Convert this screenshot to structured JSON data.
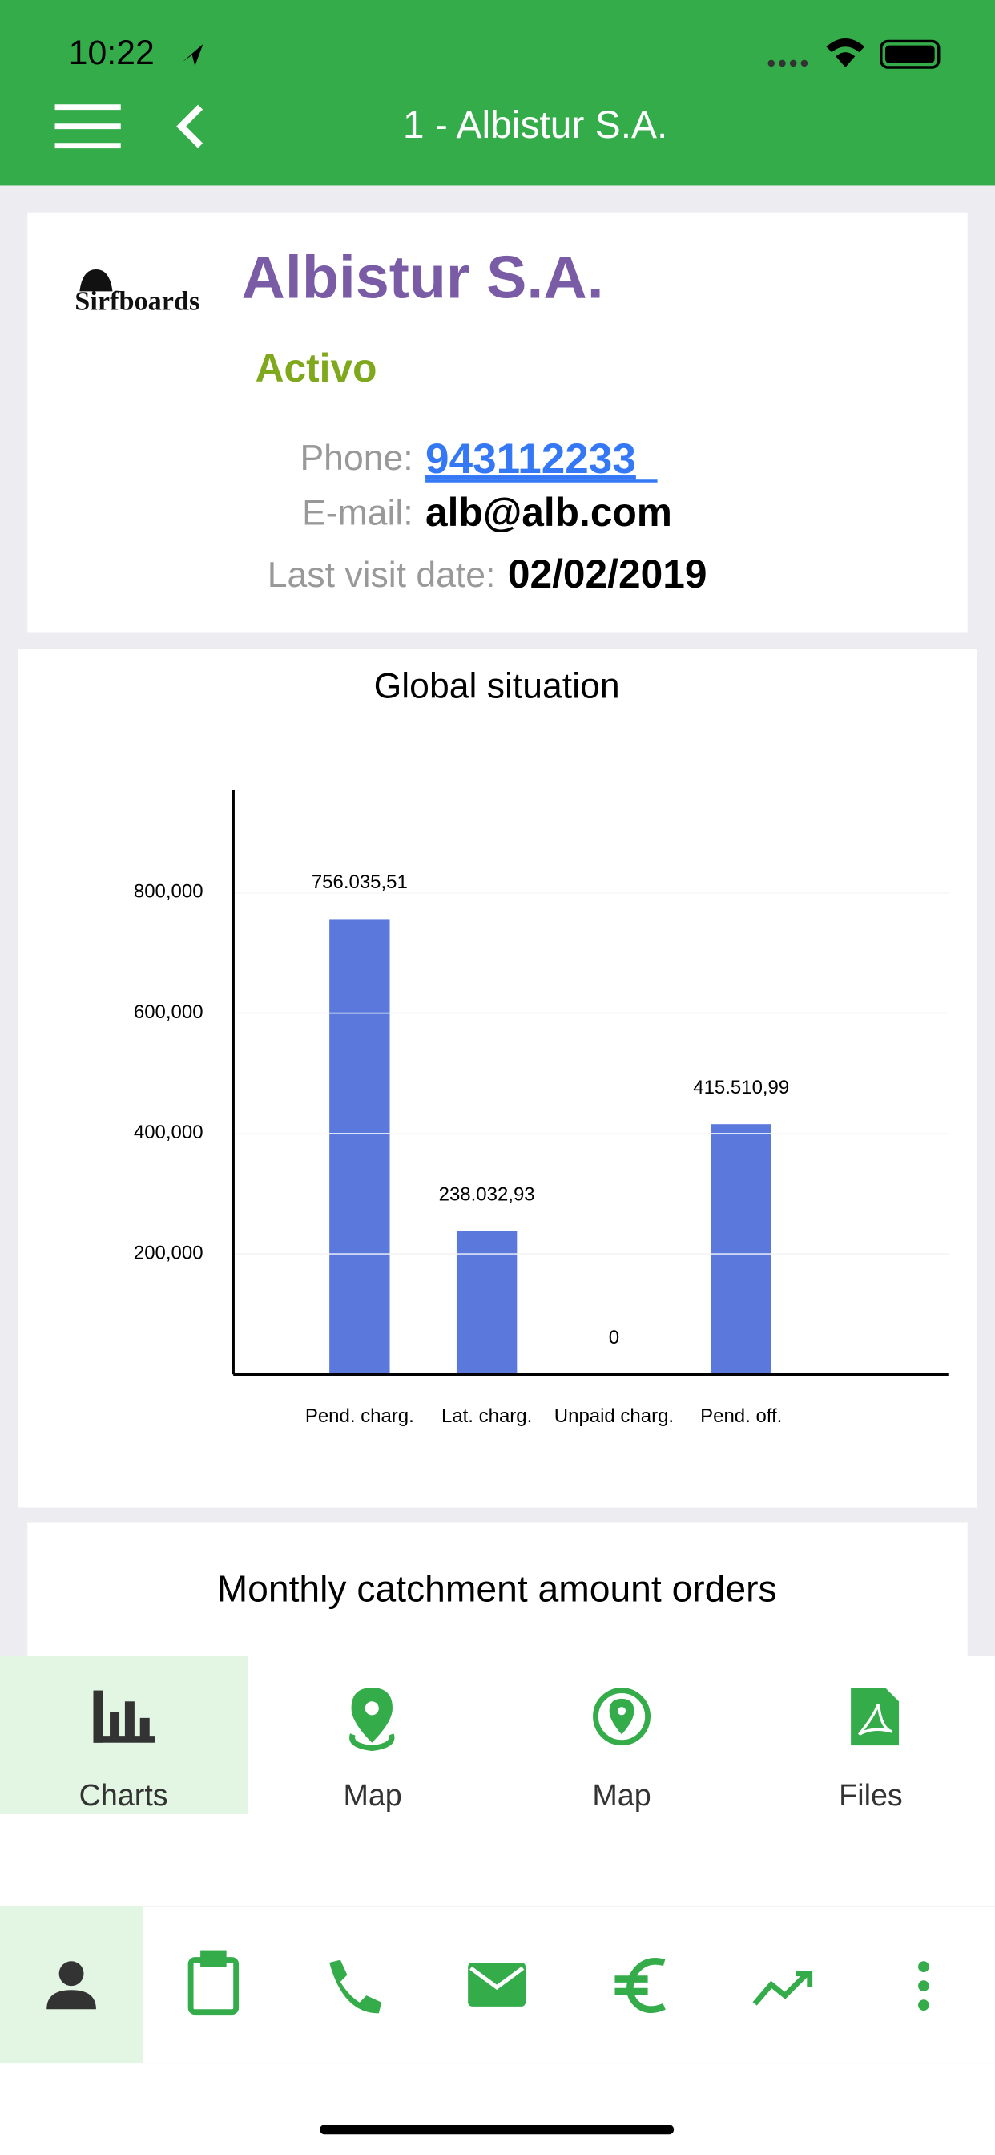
{
  "status_bar": {
    "time": "10:22"
  },
  "header": {
    "title": "1 - Albistur S.A."
  },
  "customer": {
    "logo": "Sirfboards",
    "name": "Albistur S.A.",
    "status": "Activo",
    "phone_label": "Phone:",
    "phone": "943112233",
    "email_label": "E-mail:",
    "email": "alb@alb.com",
    "visit_label": "Last visit date:",
    "visit_date": "02/02/2019"
  },
  "chart_data": {
    "type": "bar",
    "title": "Global situation",
    "categories": [
      "Pend. charg.",
      "Lat. charg.",
      "Unpaid charg.",
      "Pend. off."
    ],
    "values": [
      756035.51,
      238032.93,
      0,
      415510.99
    ],
    "value_labels": [
      "756.035,51",
      "238.032,93",
      "0",
      "415.510,99"
    ],
    "color": "#5b78dd",
    "ylim": [
      0,
      970000
    ],
    "yticks": [
      {
        "value": 200000,
        "label": "200,000"
      },
      {
        "value": 400000,
        "label": "400,000"
      },
      {
        "value": 600000,
        "label": "600,000"
      },
      {
        "value": 800000,
        "label": "800,000"
      }
    ],
    "grid": true
  },
  "next_card": {
    "title": "Monthly catchment amount orders"
  },
  "tabs": [
    {
      "label": "Charts"
    },
    {
      "label": "Map"
    },
    {
      "label": "Map"
    },
    {
      "label": "Files"
    }
  ]
}
